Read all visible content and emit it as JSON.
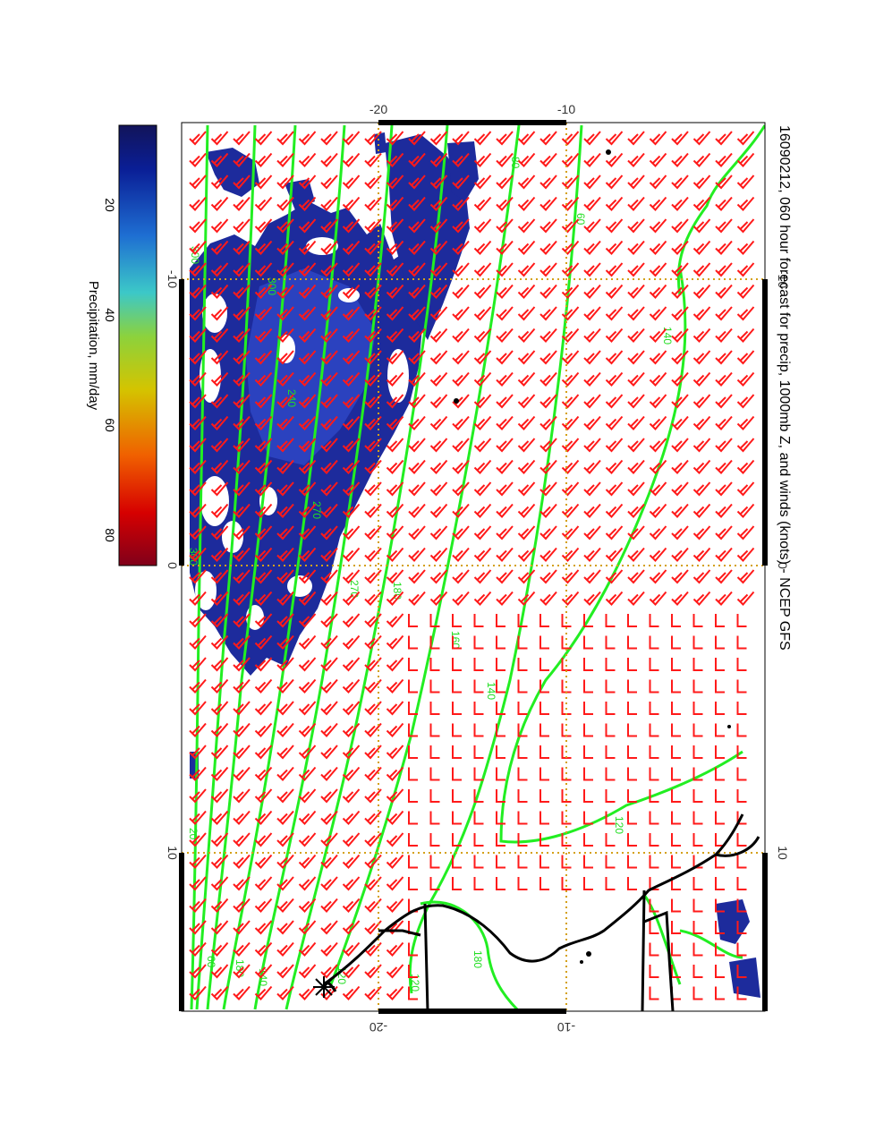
{
  "map": {
    "title": "16090212, 060 hour forecast for precip, 1000mb Z, and winds (knots) - NCEP GFS",
    "colors": {
      "precip": "#1d2b9c",
      "precip_core": "#2f49c8",
      "contour": "#22ee22",
      "barb": "#ff1a1a",
      "coast": "#000000",
      "grid": "#d4a017",
      "frame": "#000000"
    },
    "axes": {
      "lon_ticks_top": [
        "-10",
        "0",
        "10"
      ],
      "lon_ticks_bottom": [
        "-10",
        "0",
        "10"
      ],
      "lat_ticks_left": [
        "-20",
        "-10"
      ],
      "lat_ticks_right": [
        "-20",
        "-10"
      ]
    },
    "contour_labels": [
      "300",
      "300",
      "240",
      "270",
      "300",
      "270",
      "180",
      "160",
      "140",
      "140",
      "120",
      "80",
      "60",
      "20",
      "180",
      "140",
      "120",
      "180",
      "120",
      "60"
    ]
  },
  "colorbar": {
    "label": "Precipitation, mm/day",
    "ticks": [
      "20",
      "40",
      "60",
      "80"
    ],
    "range": [
      0,
      100
    ],
    "stops": [
      "#80001a",
      "#d60000",
      "#f06000",
      "#d4c400",
      "#8cd23c",
      "#3cc8c8",
      "#1e6ed2",
      "#0a1e96",
      "#12145a"
    ]
  }
}
